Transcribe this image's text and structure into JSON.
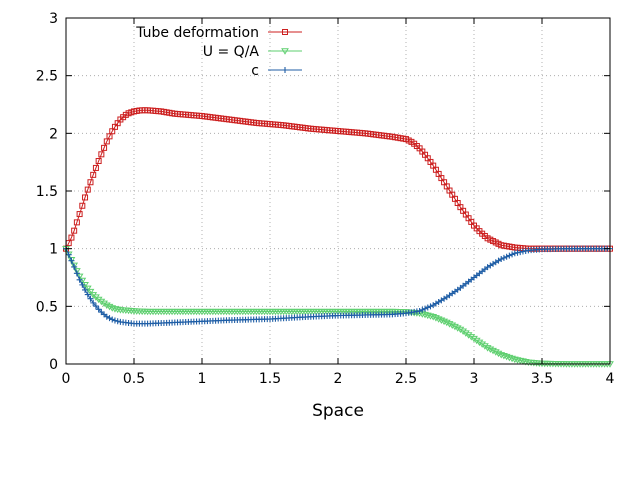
{
  "chart_data": {
    "type": "line",
    "xlabel": "Space",
    "ylabel": "",
    "xlim": [
      0,
      4
    ],
    "ylim": [
      0,
      3
    ],
    "xticks": [
      {
        "v": 0,
        "label": "0"
      },
      {
        "v": 0.5,
        "label": "0.5"
      },
      {
        "v": 1,
        "label": "1"
      },
      {
        "v": 1.5,
        "label": "1.5"
      },
      {
        "v": 2,
        "label": "2"
      },
      {
        "v": 2.5,
        "label": "2.5"
      },
      {
        "v": 3,
        "label": "3"
      },
      {
        "v": 3.5,
        "label": "3.5"
      },
      {
        "v": 4,
        "label": "4"
      }
    ],
    "yticks": [
      {
        "v": 0,
        "label": "0"
      },
      {
        "v": 0.5,
        "label": "0.5"
      },
      {
        "v": 1,
        "label": "1"
      },
      {
        "v": 1.5,
        "label": "1.5"
      },
      {
        "v": 2,
        "label": "2"
      },
      {
        "v": 2.5,
        "label": "2.5"
      },
      {
        "v": 3,
        "label": "3"
      }
    ],
    "grid": true,
    "legend_position": "top-left",
    "series": [
      {
        "name": "Tube deformation",
        "color": "#cc1f1f",
        "marker": "square",
        "points": [
          [
            0,
            1.0
          ],
          [
            0.05,
            1.12
          ],
          [
            0.1,
            1.3
          ],
          [
            0.15,
            1.48
          ],
          [
            0.2,
            1.64
          ],
          [
            0.25,
            1.79
          ],
          [
            0.3,
            1.93
          ],
          [
            0.35,
            2.04
          ],
          [
            0.4,
            2.12
          ],
          [
            0.45,
            2.17
          ],
          [
            0.5,
            2.19
          ],
          [
            0.55,
            2.2
          ],
          [
            0.6,
            2.2
          ],
          [
            0.7,
            2.19
          ],
          [
            0.8,
            2.17
          ],
          [
            1.0,
            2.15
          ],
          [
            1.2,
            2.12
          ],
          [
            1.4,
            2.09
          ],
          [
            1.6,
            2.07
          ],
          [
            1.8,
            2.04
          ],
          [
            2.0,
            2.02
          ],
          [
            2.2,
            2.0
          ],
          [
            2.4,
            1.97
          ],
          [
            2.5,
            1.95
          ],
          [
            2.55,
            1.92
          ],
          [
            2.6,
            1.87
          ],
          [
            2.65,
            1.8
          ],
          [
            2.7,
            1.72
          ],
          [
            2.75,
            1.63
          ],
          [
            2.8,
            1.54
          ],
          [
            2.85,
            1.45
          ],
          [
            2.9,
            1.36
          ],
          [
            2.95,
            1.28
          ],
          [
            3.0,
            1.2
          ],
          [
            3.05,
            1.14
          ],
          [
            3.1,
            1.09
          ],
          [
            3.15,
            1.06
          ],
          [
            3.2,
            1.03
          ],
          [
            3.3,
            1.01
          ],
          [
            3.4,
            1.0
          ],
          [
            3.6,
            1.0
          ],
          [
            3.8,
            1.0
          ],
          [
            4.0,
            1.0
          ]
        ]
      },
      {
        "name": "U = Q/A",
        "color": "#5ecf6f",
        "marker": "triangle-down",
        "points": [
          [
            0,
            1.0
          ],
          [
            0.05,
            0.88
          ],
          [
            0.1,
            0.76
          ],
          [
            0.15,
            0.67
          ],
          [
            0.2,
            0.6
          ],
          [
            0.25,
            0.55
          ],
          [
            0.3,
            0.51
          ],
          [
            0.35,
            0.48
          ],
          [
            0.4,
            0.47
          ],
          [
            0.5,
            0.46
          ],
          [
            0.6,
            0.455
          ],
          [
            0.8,
            0.455
          ],
          [
            1.0,
            0.455
          ],
          [
            1.5,
            0.455
          ],
          [
            2.0,
            0.455
          ],
          [
            2.4,
            0.455
          ],
          [
            2.5,
            0.452
          ],
          [
            2.6,
            0.44
          ],
          [
            2.7,
            0.41
          ],
          [
            2.8,
            0.36
          ],
          [
            2.9,
            0.3
          ],
          [
            3.0,
            0.22
          ],
          [
            3.1,
            0.14
          ],
          [
            3.2,
            0.08
          ],
          [
            3.3,
            0.04
          ],
          [
            3.4,
            0.015
          ],
          [
            3.5,
            0.005
          ],
          [
            3.7,
            0.0
          ],
          [
            4.0,
            0.0
          ]
        ]
      },
      {
        "name": "c",
        "color": "#1f5ea6",
        "marker": "plus",
        "points": [
          [
            0,
            1.0
          ],
          [
            0.05,
            0.87
          ],
          [
            0.1,
            0.73
          ],
          [
            0.15,
            0.62
          ],
          [
            0.2,
            0.53
          ],
          [
            0.25,
            0.46
          ],
          [
            0.3,
            0.41
          ],
          [
            0.35,
            0.38
          ],
          [
            0.4,
            0.365
          ],
          [
            0.5,
            0.35
          ],
          [
            0.6,
            0.35
          ],
          [
            0.8,
            0.36
          ],
          [
            1.0,
            0.37
          ],
          [
            1.2,
            0.38
          ],
          [
            1.5,
            0.39
          ],
          [
            1.8,
            0.41
          ],
          [
            2.0,
            0.42
          ],
          [
            2.2,
            0.425
          ],
          [
            2.4,
            0.43
          ],
          [
            2.5,
            0.44
          ],
          [
            2.6,
            0.46
          ],
          [
            2.7,
            0.51
          ],
          [
            2.8,
            0.58
          ],
          [
            2.9,
            0.66
          ],
          [
            3.0,
            0.75
          ],
          [
            3.1,
            0.84
          ],
          [
            3.2,
            0.91
          ],
          [
            3.3,
            0.96
          ],
          [
            3.4,
            0.985
          ],
          [
            3.5,
            0.995
          ],
          [
            3.7,
            1.0
          ],
          [
            4.0,
            1.0
          ]
        ]
      }
    ]
  }
}
